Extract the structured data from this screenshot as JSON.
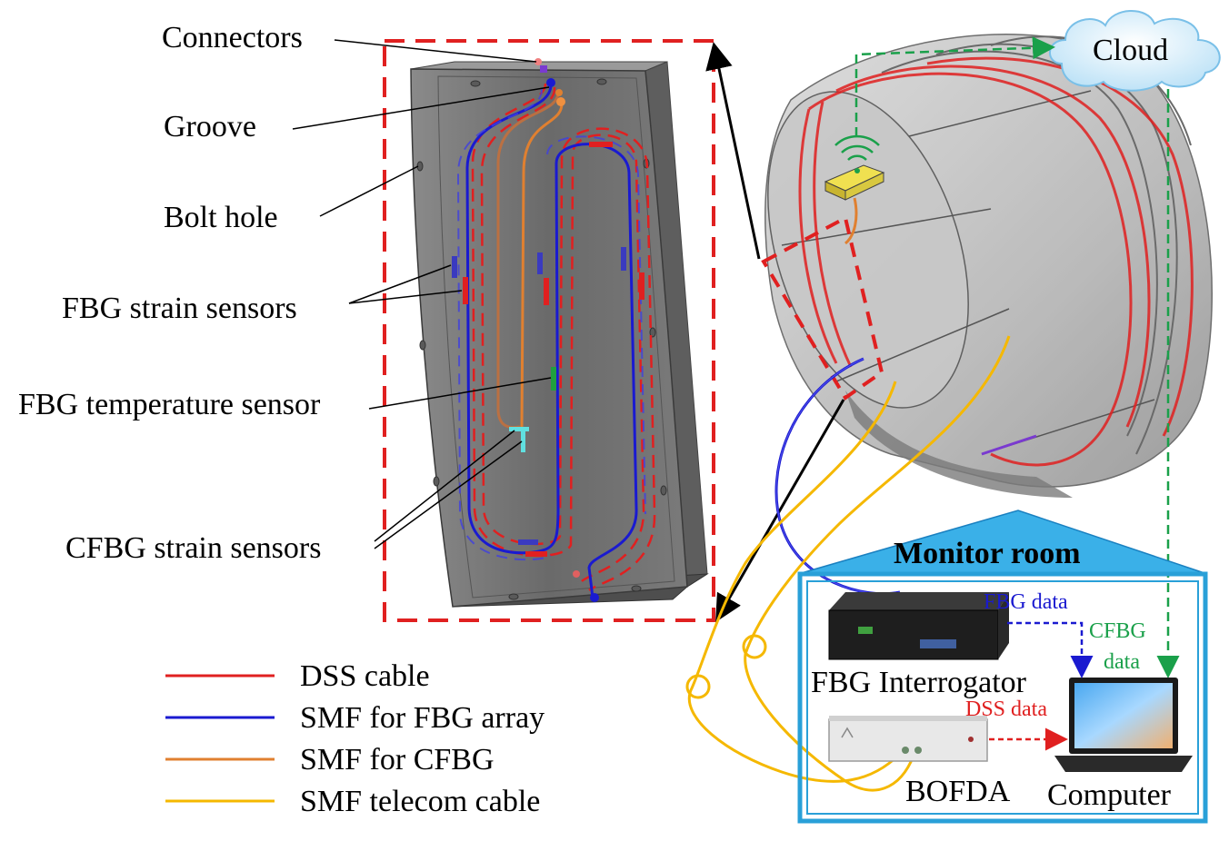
{
  "callouts": {
    "connectors": "Connectors",
    "groove": "Groove",
    "bolt_hole": "Bolt hole",
    "fbg_strain": "FBG strain sensors",
    "fbg_temperature": "FBG temperature sensor",
    "cfbg_strain": "CFBG strain sensors"
  },
  "legend": [
    {
      "label": "DSS cable",
      "color": "#e02020"
    },
    {
      "label": "SMF for FBG array",
      "color": "#1a1ad0"
    },
    {
      "label": "SMF for CFBG",
      "color": "#e08030"
    },
    {
      "label": "SMF telecom cable",
      "color": "#f5b800"
    }
  ],
  "cloud": {
    "label": "Cloud"
  },
  "monitor_room": {
    "title": "Monitor room",
    "fbg_interrogator": "FBG Interrogator",
    "bofda": "BOFDA",
    "computer": "Computer",
    "fbg_data": "FBG data",
    "cfbg_data_line1": "CFBG",
    "cfbg_data_line2": "data",
    "dss_data": "DSS data"
  },
  "colors": {
    "dss": "#e02020",
    "fbg": "#1a1ad0",
    "cfbg": "#e08030",
    "telecom": "#f5b800",
    "cloud_link": "#1aa04a",
    "room_border": "#29a0d8",
    "segment_gray": "#6e6e6e"
  }
}
